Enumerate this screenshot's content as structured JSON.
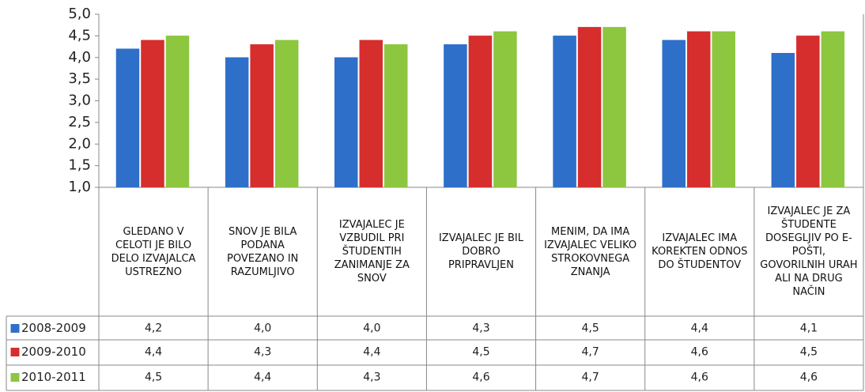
{
  "chart_data": {
    "type": "bar",
    "categories": [
      "GLEDANO V CELOTI JE BILO DELO IZVAJALCA USTREZNO",
      "SNOV JE BILA PODANA POVEZANO IN RAZUMLJIVO",
      "IZVAJALEC JE VZBUDIL PRI ŠTUDENTIH ZANIMANJE ZA SNOV",
      "IZVAJALEC JE BIL DOBRO PRIPRAVLJEN",
      "MENIM, DA IMA IZVAJALEC VELIKO STROKOVNEGA ZNANJA",
      "IZVAJALEC IMA KOREKTEN ODNOS DO ŠTUDENTOV",
      "IZVAJALEC JE ZA ŠTUDENTE DOSEGLJIV PO E-POŠTI, GOVORILNIH URAH ALI NA DRUG NAČIN"
    ],
    "series": [
      {
        "name": "2008-2009",
        "color": "#2e6fc9",
        "values": [
          4.2,
          4.0,
          4.0,
          4.3,
          4.5,
          4.4,
          4.1
        ],
        "value_labels": [
          "4,2",
          "4,0",
          "4,0",
          "4,3",
          "4,5",
          "4,4",
          "4,1"
        ]
      },
      {
        "name": "2009-2010",
        "color": "#d62d2d",
        "values": [
          4.4,
          4.3,
          4.4,
          4.5,
          4.7,
          4.6,
          4.5
        ],
        "value_labels": [
          "4,4",
          "4,3",
          "4,4",
          "4,5",
          "4,7",
          "4,6",
          "4,5"
        ]
      },
      {
        "name": "2010-2011",
        "color": "#8dc63f",
        "values": [
          4.5,
          4.4,
          4.3,
          4.6,
          4.7,
          4.6,
          4.6
        ],
        "value_labels": [
          "4,5",
          "4,4",
          "4,3",
          "4,6",
          "4,7",
          "4,6",
          "4,6"
        ]
      }
    ],
    "ylim": [
      1,
      5
    ],
    "yticks": [
      {
        "value": 1,
        "label": "1,0"
      },
      {
        "value": 1.5,
        "label": "1,5"
      },
      {
        "value": 2,
        "label": "2,0"
      },
      {
        "value": 2.5,
        "label": "2,5"
      },
      {
        "value": 3,
        "label": "3,0"
      },
      {
        "value": 3.5,
        "label": "3,5"
      },
      {
        "value": 4,
        "label": "4,0"
      },
      {
        "value": 4.5,
        "label": "4,5"
      },
      {
        "value": 5,
        "label": "5,0"
      }
    ],
    "grid": false
  }
}
